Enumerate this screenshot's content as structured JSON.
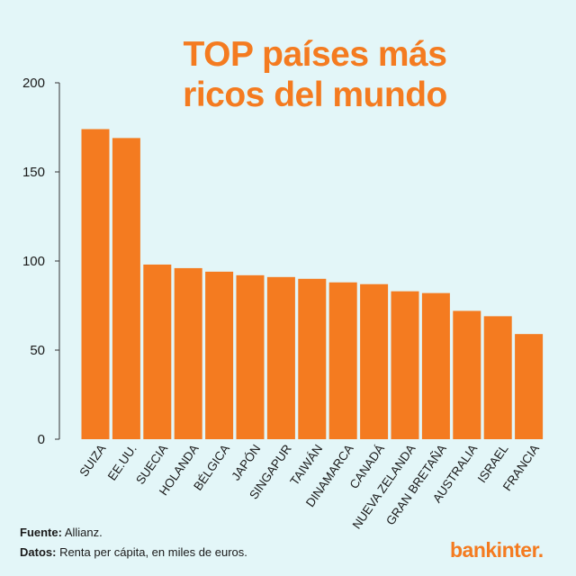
{
  "chart_data": {
    "type": "bar",
    "title": "TOP países más ricos del mundo",
    "title_lines": [
      "TOP países más",
      "ricos del mundo"
    ],
    "categories": [
      "SUIZA",
      "EE.UU.",
      "SUECIA",
      "HOLANDA",
      "BÉLGICA",
      "JAPÓN",
      "SINGAPUR",
      "TAIWÁN",
      "DINAMARCA",
      "CANADÁ",
      "NUEVA ZELANDA",
      "GRAN BRETAÑA",
      "AUSTRALIA",
      "ISRAEL",
      "FRANCIA"
    ],
    "values": [
      174,
      169,
      98,
      96,
      94,
      92,
      91,
      90,
      88,
      87,
      83,
      82,
      72,
      69,
      59
    ],
    "ylim": [
      0,
      200
    ],
    "yticks": [
      0,
      50,
      100,
      150,
      200
    ],
    "xlabel": "",
    "ylabel": "",
    "grid": false,
    "bar_color": "#f47b20"
  },
  "footer": {
    "source_label": "Fuente:",
    "source_value": " Allianz.",
    "data_label": "Datos:",
    "data_value": " Renta per cápita, en miles de euros."
  },
  "brand": "bankinter."
}
